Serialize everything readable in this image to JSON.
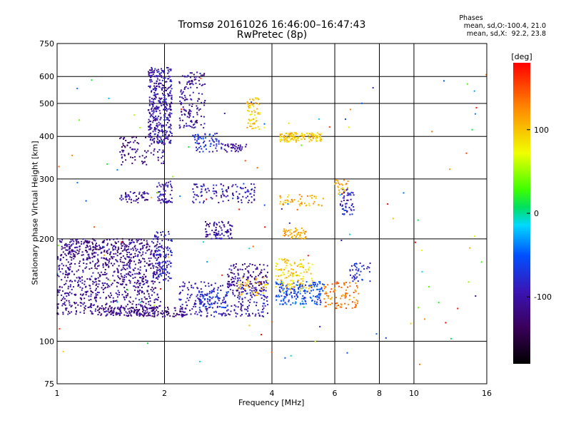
{
  "title_line1": "Tromsø 20161026 16:46:00–16:47:43",
  "title_line2": "RwPretec (8p)",
  "phases": {
    "heading": "Phases",
    "line1": "mean, sd,O:-100.4, 21.0",
    "line2": "mean, sd,X:  92.2, 23.8"
  },
  "colorbar": {
    "label": "[deg]",
    "ticks": [
      "100",
      "0",
      "-100"
    ],
    "tick_values": [
      100,
      0,
      -100
    ],
    "range": [
      -180,
      180
    ]
  },
  "chart_data": {
    "type": "scatter",
    "xlabel": "Frequency [MHz]",
    "ylabel": "Stationary phase Virtual Height [km]",
    "xscale": "log",
    "yscale": "log",
    "xlim": [
      1,
      16
    ],
    "ylim": [
      75,
      750
    ],
    "xticks": [
      "1",
      "2",
      "4",
      "6",
      "8",
      "10",
      "16"
    ],
    "xtick_values": [
      1,
      2,
      4,
      6,
      8,
      10,
      16
    ],
    "xgrid": [
      2,
      4,
      6,
      8,
      10
    ],
    "yticks": [
      "75",
      "100",
      "200",
      "300",
      "400",
      "500",
      "600",
      "750"
    ],
    "ytick_values": [
      75,
      100,
      200,
      300,
      400,
      500,
      600,
      750
    ],
    "ygrid": [
      100,
      200,
      300,
      400,
      500,
      600
    ],
    "clusters": [
      {
        "fmin": 1.0,
        "fmax": 1.95,
        "hmin": 120,
        "hmax": 200,
        "phase": -110,
        "count": 900
      },
      {
        "fmin": 1.3,
        "fmax": 2.3,
        "hmin": 118,
        "hmax": 126,
        "phase": -120,
        "count": 160
      },
      {
        "fmin": 1.05,
        "fmax": 1.6,
        "hmin": 175,
        "hmax": 200,
        "phase": -120,
        "count": 90
      },
      {
        "fmin": 1.85,
        "fmax": 2.1,
        "hmin": 150,
        "hmax": 210,
        "phase": -90,
        "count": 120
      },
      {
        "fmin": 2.2,
        "fmax": 3.9,
        "hmin": 118,
        "hmax": 150,
        "phase": -95,
        "count": 280
      },
      {
        "fmin": 2.5,
        "fmax": 3.0,
        "hmin": 125,
        "hmax": 140,
        "phase": -70,
        "count": 60
      },
      {
        "fmin": 3.0,
        "fmax": 3.9,
        "hmin": 140,
        "hmax": 170,
        "phase": -110,
        "count": 120
      },
      {
        "fmin": 3.2,
        "fmax": 3.9,
        "hmin": 135,
        "hmax": 155,
        "phase": 100,
        "count": 40
      },
      {
        "fmin": 1.5,
        "fmax": 2.0,
        "hmin": 330,
        "hmax": 400,
        "phase": -115,
        "count": 90
      },
      {
        "fmin": 1.8,
        "fmax": 2.1,
        "hmin": 380,
        "hmax": 640,
        "phase": -100,
        "count": 380
      },
      {
        "fmin": 2.2,
        "fmax": 2.6,
        "hmin": 420,
        "hmax": 620,
        "phase": -105,
        "count": 140
      },
      {
        "fmin": 2.4,
        "fmax": 2.9,
        "hmin": 360,
        "hmax": 410,
        "phase": -75,
        "count": 70
      },
      {
        "fmin": 2.9,
        "fmax": 3.4,
        "hmin": 360,
        "hmax": 380,
        "phase": -110,
        "count": 40
      },
      {
        "fmin": 3.4,
        "fmax": 3.7,
        "hmin": 420,
        "hmax": 520,
        "phase": 95,
        "count": 60
      },
      {
        "fmin": 1.5,
        "fmax": 1.8,
        "hmin": 255,
        "hmax": 275,
        "phase": -110,
        "count": 50
      },
      {
        "fmin": 1.9,
        "fmax": 2.1,
        "hmin": 255,
        "hmax": 295,
        "phase": -100,
        "count": 60
      },
      {
        "fmin": 2.4,
        "fmax": 3.6,
        "hmin": 255,
        "hmax": 290,
        "phase": -95,
        "count": 110
      },
      {
        "fmin": 2.6,
        "fmax": 3.1,
        "hmin": 200,
        "hmax": 225,
        "phase": -100,
        "count": 80
      },
      {
        "fmin": 4.2,
        "fmax": 5.5,
        "hmin": 385,
        "hmax": 410,
        "phase": 95,
        "count": 130
      },
      {
        "fmin": 4.3,
        "fmax": 5.0,
        "hmin": 200,
        "hmax": 215,
        "phase": 110,
        "count": 50
      },
      {
        "fmin": 4.2,
        "fmax": 5.6,
        "hmin": 250,
        "hmax": 270,
        "phase": 110,
        "count": 50
      },
      {
        "fmin": 4.1,
        "fmax": 5.6,
        "hmin": 128,
        "hmax": 150,
        "phase": -60,
        "count": 180
      },
      {
        "fmin": 4.1,
        "fmax": 5.2,
        "hmin": 140,
        "hmax": 175,
        "phase": 95,
        "count": 120
      },
      {
        "fmin": 5.6,
        "fmax": 7.0,
        "hmin": 125,
        "hmax": 150,
        "phase": 130,
        "count": 90
      },
      {
        "fmin": 6.2,
        "fmax": 6.8,
        "hmin": 235,
        "hmax": 280,
        "phase": -90,
        "count": 50
      },
      {
        "fmin": 6.0,
        "fmax": 6.6,
        "hmin": 270,
        "hmax": 300,
        "phase": 120,
        "count": 25
      },
      {
        "fmin": 6.6,
        "fmax": 7.6,
        "hmin": 150,
        "hmax": 170,
        "phase": -80,
        "count": 40
      },
      {
        "fmin": 1.0,
        "fmax": 16.0,
        "hmin": 85,
        "hmax": 620,
        "phase": 40,
        "count": 120
      }
    ]
  }
}
